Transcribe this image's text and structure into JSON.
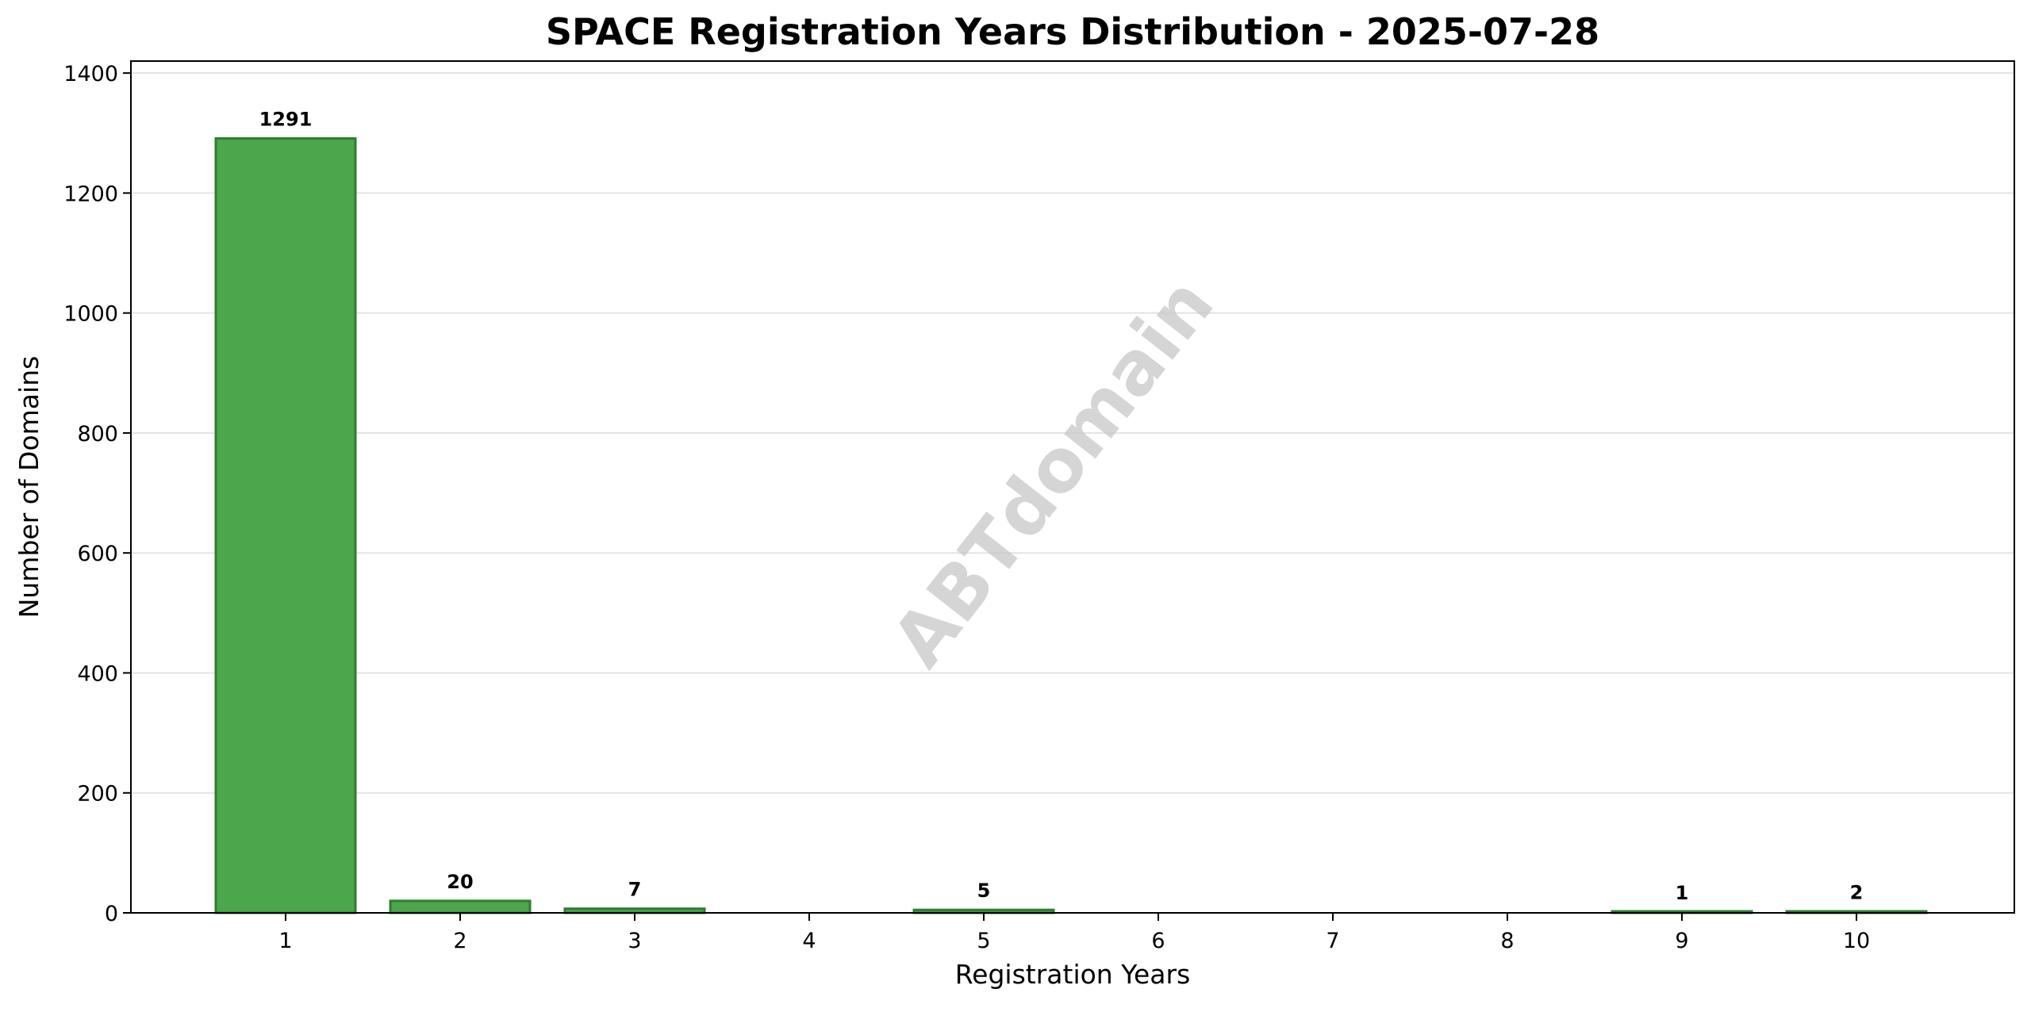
{
  "chart_data": {
    "type": "bar",
    "title": "SPACE Registration Years Distribution - 2025-07-28",
    "xlabel": "Registration Years",
    "ylabel": "Number of Domains",
    "categories": [
      "1",
      "2",
      "3",
      "4",
      "5",
      "6",
      "7",
      "8",
      "9",
      "10"
    ],
    "values": [
      1291,
      20,
      7,
      0,
      5,
      0,
      0,
      0,
      1,
      2
    ],
    "data_labels": [
      "1291",
      "20",
      "7",
      "",
      "5",
      "",
      "",
      "",
      "1",
      "2"
    ],
    "ylim": [
      0,
      1420
    ],
    "yticks": [
      0,
      200,
      400,
      600,
      800,
      1000,
      1200,
      1400
    ],
    "grid": "horizontal",
    "bar_color": "#4ca64c",
    "bar_edge_color": "#2e7d32",
    "watermark": "ABTdomain"
  }
}
